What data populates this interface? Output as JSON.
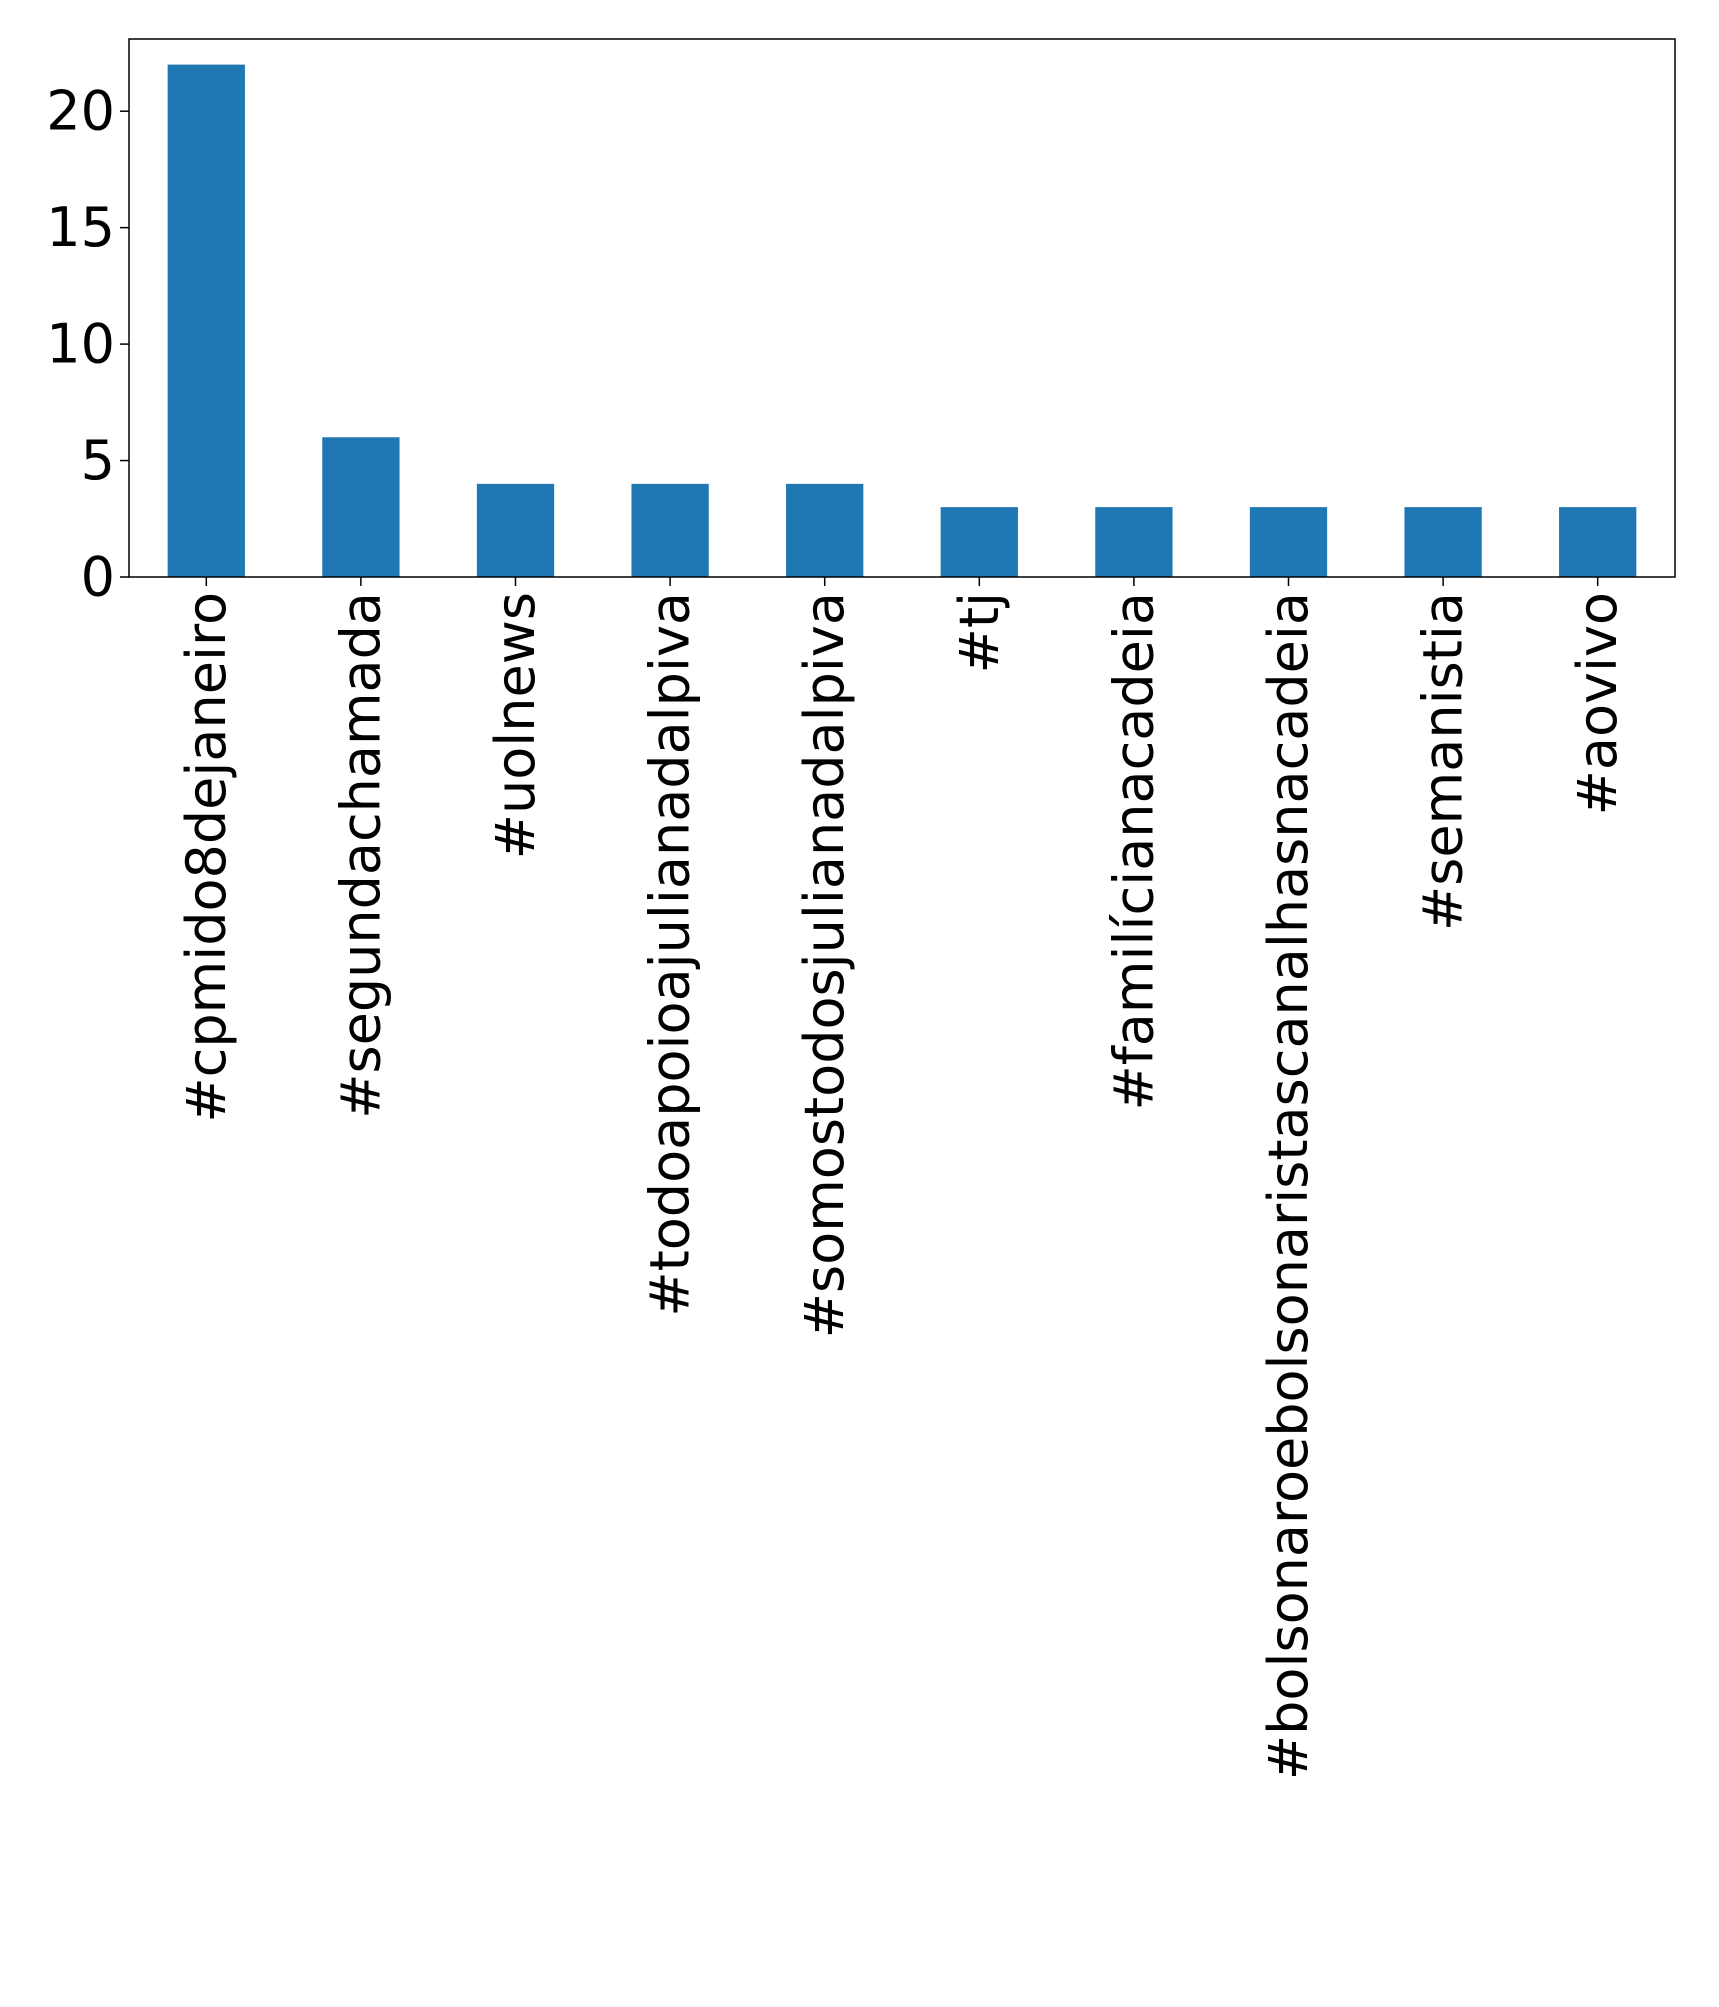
{
  "chart_data": {
    "type": "bar",
    "title": "",
    "xlabel": "",
    "ylabel": "",
    "categories": [
      "#cpmido8dejaneiro",
      "#segundachamada",
      "#uolnews",
      "#todoapoioajulianadalpiva",
      "#somostodosjulianadalpiva",
      "#tj",
      "#familícianacadeia",
      "#bolsonaroebolsonaristascanalhasnacadeia",
      "#semanistia",
      "#aovivo"
    ],
    "values": [
      22,
      6,
      4,
      4,
      4,
      3,
      3,
      3,
      3,
      3
    ],
    "ylim": [
      0,
      23.1
    ],
    "yticks": [
      0,
      5,
      10,
      15,
      20
    ],
    "grid": false,
    "bar_color": "#1f77b4"
  }
}
